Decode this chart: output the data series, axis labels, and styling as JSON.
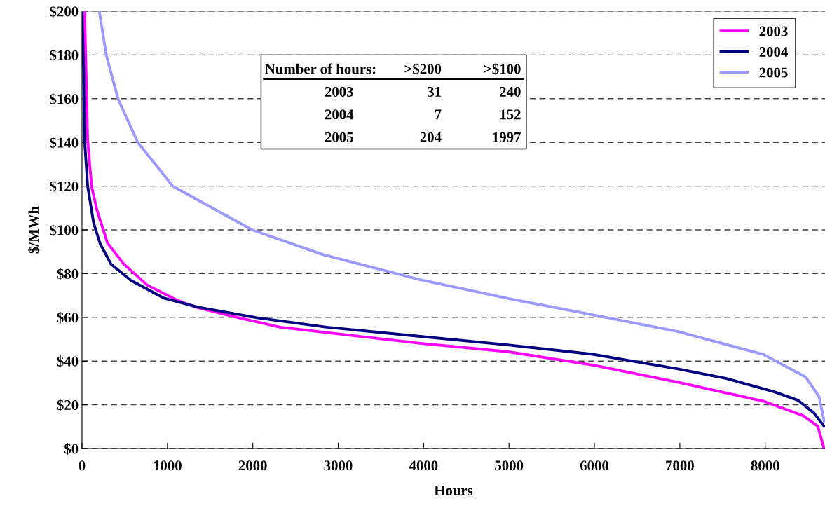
{
  "chart_data": {
    "type": "line",
    "xlabel": "Hours",
    "ylabel": "$/MWh",
    "xlim": [
      0,
      8700
    ],
    "xticks": [
      0,
      1000,
      2000,
      3000,
      4000,
      5000,
      6000,
      7000,
      8000
    ],
    "ylim": [
      0,
      200
    ],
    "yticks": [
      {
        "value": 0,
        "label": "$0"
      },
      {
        "value": 20,
        "label": "$20"
      },
      {
        "value": 40,
        "label": "$40"
      },
      {
        "value": 60,
        "label": "$60"
      },
      {
        "value": 80,
        "label": "$80"
      },
      {
        "value": 100,
        "label": "$100"
      },
      {
        "value": 120,
        "label": "$120"
      },
      {
        "value": 140,
        "label": "$140"
      },
      {
        "value": 160,
        "label": "$160"
      },
      {
        "value": 180,
        "label": "$180"
      },
      {
        "value": 200,
        "label": "$200"
      }
    ],
    "grid": "y",
    "legend": "top right",
    "marker": "none",
    "line_style": "solid",
    "annotations": [
      "Number of hours:",
      ">$200",
      ">$100",
      "2003",
      "31",
      "240",
      "2004",
      "7",
      "152",
      "2005",
      "204",
      "1997"
    ],
    "series": [
      {
        "name": "2003",
        "color": "#ff00ff",
        "x": [
          30,
          47,
          66,
          112,
          175,
          298,
          489,
          762,
          1117,
          1336,
          1773,
          2320,
          3139,
          3959,
          4981,
          5980,
          6978,
          7975,
          8444,
          8615,
          8689
        ],
        "values": [
          200,
          173,
          141,
          120,
          109,
          94,
          84.4,
          74.8,
          67.8,
          64.6,
          60.4,
          55.5,
          51.8,
          48.1,
          44.3,
          38.2,
          30.3,
          21.7,
          15,
          10.2,
          0
        ]
      },
      {
        "name": "2004",
        "color": "#000080",
        "x": [
          0,
          19,
          30,
          66,
          134,
          161,
          213,
          339,
          571,
          953,
          1363,
          2047,
          2866,
          3959,
          4981,
          5980,
          6978,
          7539,
          8101,
          8382,
          8569,
          8689
        ],
        "values": [
          200,
          173,
          141,
          120,
          103.6,
          100,
          93.6,
          84.4,
          76.9,
          68.9,
          64.6,
          59.8,
          55.5,
          51.3,
          47.4,
          43.1,
          36.4,
          32.1,
          26,
          22.1,
          16.3,
          10.2
        ]
      },
      {
        "name": "2005",
        "color": "#9999ff",
        "x": [
          202,
          284,
          421,
          653,
          1063,
          1992,
          2811,
          3959,
          4981,
          6104,
          6978,
          7975,
          8475,
          8631,
          8689
        ],
        "values": [
          200,
          180,
          160,
          140,
          120,
          100,
          88.8,
          77.2,
          68.7,
          60.2,
          53.5,
          43.1,
          32.7,
          23.7,
          12.6
        ]
      }
    ]
  }
}
